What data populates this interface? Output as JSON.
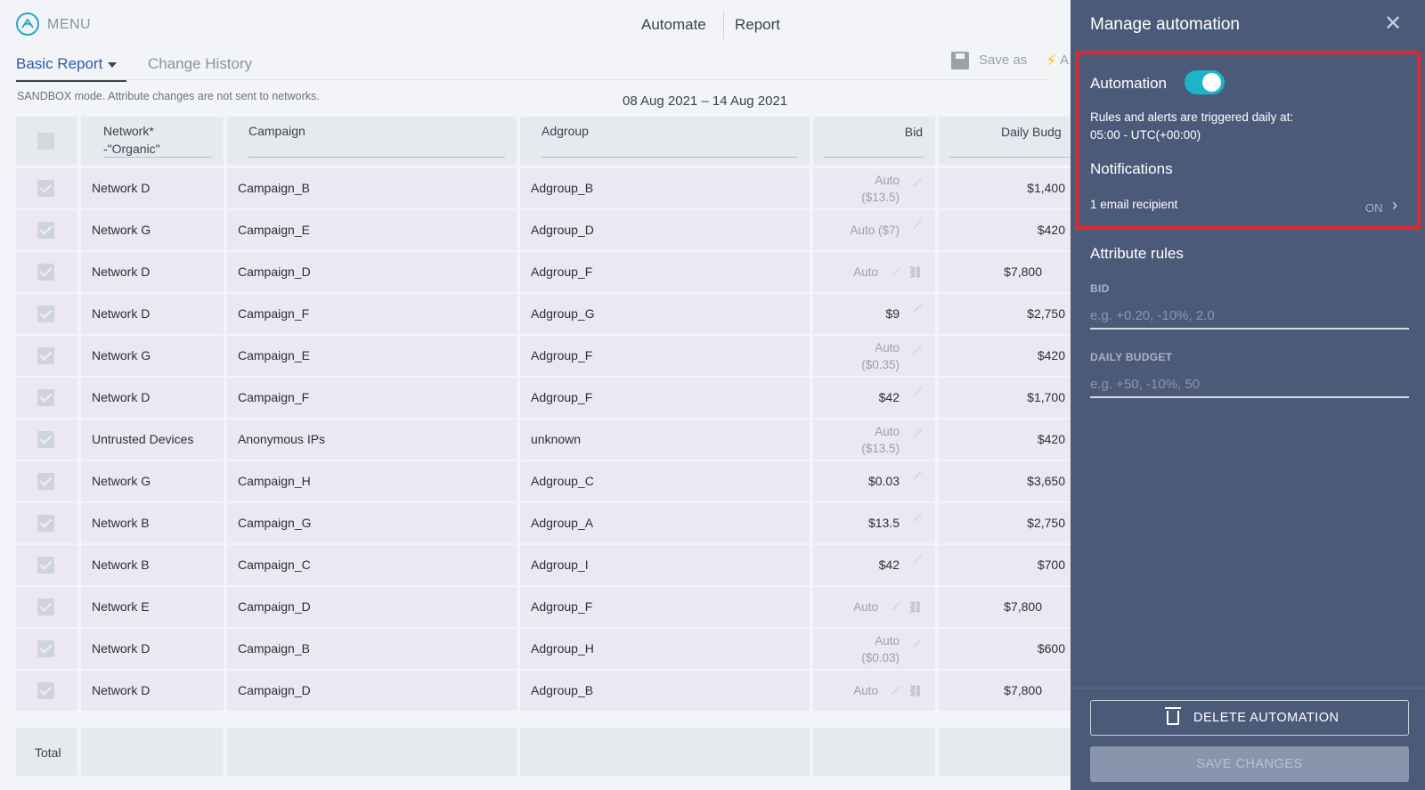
{
  "topbar": {
    "menu_label": "MENU",
    "nav_automate": "Automate",
    "nav_report": "Report"
  },
  "tabs": {
    "basic_report": "Basic Report",
    "change_history": "Change History"
  },
  "toolbar": {
    "save_as": "Save as",
    "automate_short": "A"
  },
  "sandbox_notice": "SANDBOX mode. Attribute changes are not sent to networks.",
  "date_range": "08 Aug 2021 – 14 Aug 2021",
  "table": {
    "headers": {
      "network": "Network*",
      "network_filter": "-\"Organic\"",
      "campaign": "Campaign",
      "adgroup": "Adgroup",
      "bid": "Bid",
      "daily_budget": "Daily Budg"
    },
    "rows": [
      {
        "network": "Network D",
        "campaign": "Campaign_B",
        "adgroup": "Adgroup_B",
        "bid": "Auto",
        "bid_sub": "($13.5)",
        "bid_style": "muted2",
        "budget": "$1,400"
      },
      {
        "network": "Network G",
        "campaign": "Campaign_E",
        "adgroup": "Adgroup_D",
        "bid": "Auto ($7)",
        "bid_sub": "",
        "bid_style": "muted",
        "budget": "$420"
      },
      {
        "network": "Network D",
        "campaign": "Campaign_D",
        "adgroup": "Adgroup_F",
        "bid": "Auto",
        "bid_sub": "",
        "bid_style": "link",
        "budget": "$7,800"
      },
      {
        "network": "Network D",
        "campaign": "Campaign_F",
        "adgroup": "Adgroup_G",
        "bid": "$9",
        "bid_sub": "",
        "bid_style": "normal",
        "budget": "$2,750"
      },
      {
        "network": "Network G",
        "campaign": "Campaign_E",
        "adgroup": "Adgroup_F",
        "bid": "Auto",
        "bid_sub": "($0.35)",
        "bid_style": "muted2",
        "budget": "$420"
      },
      {
        "network": "Network D",
        "campaign": "Campaign_F",
        "adgroup": "Adgroup_F",
        "bid": "$42",
        "bid_sub": "",
        "bid_style": "normal",
        "budget": "$1,700"
      },
      {
        "network": "Untrusted Devices",
        "campaign": "Anonymous IPs",
        "adgroup": "unknown",
        "bid": "Auto",
        "bid_sub": "($13.5)",
        "bid_style": "muted2",
        "budget": "$420"
      },
      {
        "network": "Network G",
        "campaign": "Campaign_H",
        "adgroup": "Adgroup_C",
        "bid": "$0.03",
        "bid_sub": "",
        "bid_style": "normal",
        "budget": "$3,650"
      },
      {
        "network": "Network B",
        "campaign": "Campaign_G",
        "adgroup": "Adgroup_A",
        "bid": "$13.5",
        "bid_sub": "",
        "bid_style": "normal",
        "budget": "$2,750"
      },
      {
        "network": "Network B",
        "campaign": "Campaign_C",
        "adgroup": "Adgroup_I",
        "bid": "$42",
        "bid_sub": "",
        "bid_style": "normal",
        "budget": "$700"
      },
      {
        "network": "Network E",
        "campaign": "Campaign_D",
        "adgroup": "Adgroup_F",
        "bid": "Auto",
        "bid_sub": "",
        "bid_style": "link",
        "budget": "$7,800"
      },
      {
        "network": "Network D",
        "campaign": "Campaign_B",
        "adgroup": "Adgroup_H",
        "bid": "Auto",
        "bid_sub": "($0.03)",
        "bid_style": "muted2",
        "budget": "$600"
      },
      {
        "network": "Network D",
        "campaign": "Campaign_D",
        "adgroup": "Adgroup_B",
        "bid": "Auto",
        "bid_sub": "",
        "bid_style": "link",
        "budget": "$7,800"
      }
    ],
    "total_label": "Total"
  },
  "panel": {
    "title": "Manage automation",
    "automation_label": "Automation",
    "automation_on": true,
    "rules_line1": "Rules and alerts are triggered daily at:",
    "rules_line2": "05:00 - UTC(+00:00)",
    "notifications_title": "Notifications",
    "email_recipients": "1 email recipient",
    "notifications_state": "ON",
    "attribute_rules_title": "Attribute rules",
    "bid_label": "BID",
    "bid_placeholder": "e.g. +0.20, -10%, 2.0",
    "budget_label": "DAILY BUDGET",
    "budget_placeholder": "e.g. +50, -10%, 50",
    "delete_label": "DELETE AUTOMATION",
    "save_label": "SAVE CHANGES"
  },
  "colors": {
    "panel_bg": "#4c5a7a",
    "toggle_on": "#1bb4c9",
    "highlight_box": "#e3262a",
    "row_bg": "#ebe8f3"
  }
}
